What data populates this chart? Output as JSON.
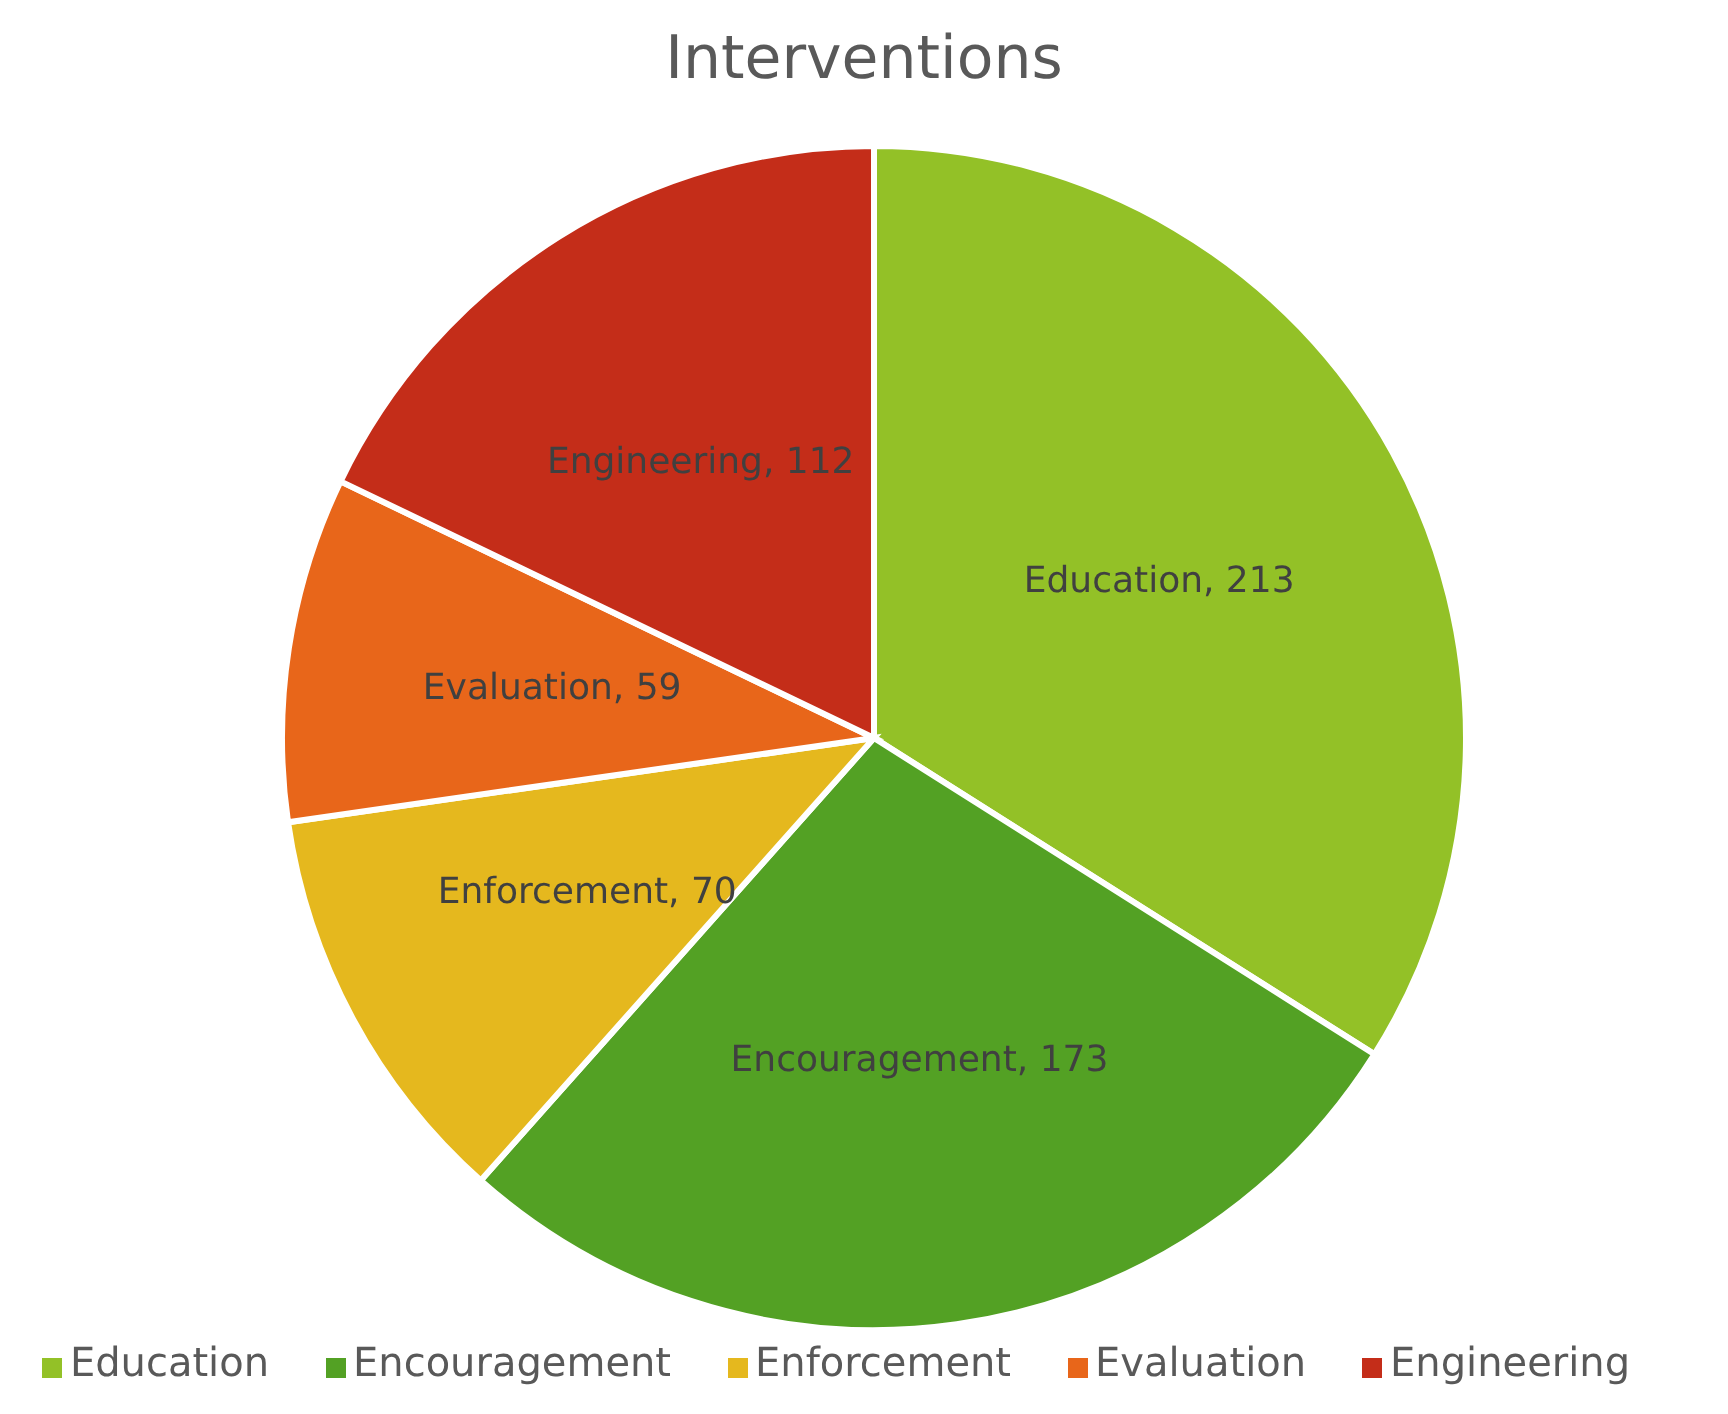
{
  "chart_data": {
    "type": "pie",
    "title": "Interventions",
    "categories": [
      "Education",
      "Encouragement",
      "Enforcement",
      "Evaluation",
      "Engineering"
    ],
    "values": [
      213,
      173,
      70,
      59,
      112
    ],
    "colors": [
      "#93c127",
      "#53a124",
      "#e5b81e",
      "#e8661a",
      "#c42d19"
    ],
    "value_labels": [
      "Education, 213",
      "Encouragement, 173",
      "Enforcement, 70",
      "Evaluation, 59",
      "Engineering, 112"
    ],
    "legend": "bottom"
  }
}
